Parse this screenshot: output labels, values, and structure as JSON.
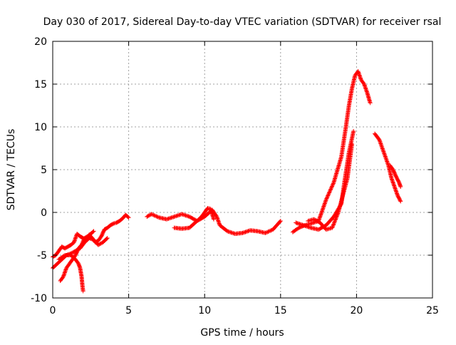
{
  "chart_data": {
    "type": "scatter",
    "title": "Day 030 of 2017, Sidereal Day-to-day VTEC variation (SDTVAR) for receiver rsal",
    "xlabel": "GPS time / hours",
    "ylabel": "SDTVAR / TECUs",
    "xlim": [
      0,
      25
    ],
    "ylim": [
      -10,
      20
    ],
    "x_ticks": [
      0,
      5,
      10,
      15,
      20,
      25
    ],
    "x_tick_labels": [
      "0",
      "5",
      "10",
      "15",
      "20",
      "25"
    ],
    "y_ticks": [
      -10,
      -5,
      0,
      5,
      10,
      15,
      20
    ],
    "y_tick_labels": [
      "-10",
      "-5",
      "0",
      "5",
      "10",
      "15",
      "20"
    ],
    "grid": true,
    "marker": "+",
    "series_color": "#ff0000",
    "series": [
      {
        "name": "segment-1",
        "x": [
          0.0,
          0.2,
          0.4,
          0.6,
          0.8,
          1.0,
          1.2,
          1.4,
          1.6,
          1.8,
          2.0,
          2.2,
          2.4,
          2.6,
          2.8,
          3.0,
          3.2,
          3.4,
          3.6,
          3.8,
          4.0,
          4.2,
          4.4,
          4.6,
          4.8,
          5.0
        ],
        "y": [
          -5.2,
          -5.0,
          -4.5,
          -4.0,
          -4.2,
          -4.0,
          -3.8,
          -3.5,
          -2.5,
          -2.8,
          -3.0,
          -3.2,
          -2.6,
          -3.0,
          -3.5,
          -3.3,
          -2.8,
          -2.0,
          -1.8,
          -1.5,
          -1.3,
          -1.2,
          -1.0,
          -0.7,
          -0.3,
          -0.6
        ]
      },
      {
        "name": "segment-2",
        "x": [
          0.0,
          0.3,
          0.6,
          0.9,
          1.2,
          1.5,
          1.8,
          2.1,
          2.4,
          2.7,
          3.0,
          3.3,
          3.6
        ],
        "y": [
          -6.5,
          -6.0,
          -5.5,
          -5.0,
          -4.8,
          -4.5,
          -4.2,
          -3.5,
          -3.0,
          -3.2,
          -3.8,
          -3.5,
          -3.0
        ]
      },
      {
        "name": "segment-3",
        "x": [
          0.5,
          0.7,
          0.9,
          1.1,
          1.3,
          1.5,
          1.7,
          1.9,
          2.1,
          2.3,
          2.5,
          2.7
        ],
        "y": [
          -8.0,
          -7.5,
          -6.5,
          -6.0,
          -5.5,
          -5.0,
          -4.2,
          -3.8,
          -3.0,
          -2.8,
          -2.5,
          -2.2
        ]
      },
      {
        "name": "segment-4",
        "x": [
          0.4,
          0.8,
          1.2,
          1.5,
          1.7,
          1.8,
          1.9,
          1.95,
          2.0
        ],
        "y": [
          -5.5,
          -5.0,
          -5.0,
          -5.5,
          -6.0,
          -6.5,
          -7.5,
          -8.5,
          -9.2
        ]
      },
      {
        "name": "segment-5",
        "x": [
          6.2,
          6.5,
          7.0,
          7.5,
          8.0,
          8.5,
          9.0,
          9.5,
          10.0,
          10.5,
          10.8,
          11.0,
          11.5,
          12.0,
          12.5,
          13.0,
          13.5,
          14.0,
          14.5,
          15.0
        ],
        "y": [
          -0.5,
          -0.2,
          -0.6,
          -0.8,
          -0.5,
          -0.2,
          -0.5,
          -1.0,
          -0.5,
          0.3,
          -0.5,
          -1.5,
          -2.2,
          -2.5,
          -2.4,
          -2.1,
          -2.2,
          -2.4,
          -2.0,
          -1.0
        ]
      },
      {
        "name": "segment-6",
        "x": [
          8.0,
          8.5,
          9.0,
          9.5,
          9.8,
          10.0,
          10.2,
          10.4,
          10.6
        ],
        "y": [
          -1.8,
          -1.9,
          -1.8,
          -1.0,
          -0.5,
          0.0,
          0.5,
          0.4,
          -0.8
        ]
      },
      {
        "name": "segment-7",
        "x": [
          15.8,
          16.2,
          16.6,
          17.0,
          17.5,
          18.0,
          18.5,
          19.0,
          19.3,
          19.5,
          19.7,
          19.9,
          20.1,
          20.3,
          20.5,
          20.7,
          20.9
        ],
        "y": [
          -2.3,
          -1.8,
          -1.5,
          -1.3,
          -1.0,
          1.5,
          3.5,
          6.5,
          10.0,
          12.5,
          14.5,
          16.0,
          16.5,
          15.5,
          15.0,
          14.0,
          12.8
        ]
      },
      {
        "name": "segment-8",
        "x": [
          16.0,
          16.5,
          17.0,
          17.5,
          18.0,
          18.5,
          19.0,
          19.2,
          19.5,
          19.8
        ],
        "y": [
          -1.2,
          -1.5,
          -1.8,
          -2.0,
          -1.5,
          -0.5,
          1.0,
          3.5,
          7.0,
          9.5
        ]
      },
      {
        "name": "segment-9",
        "x": [
          16.8,
          17.2,
          17.6,
          18.0,
          18.4,
          18.8,
          19.1,
          19.4,
          19.7
        ],
        "y": [
          -1.0,
          -0.8,
          -1.2,
          -2.0,
          -1.8,
          0.0,
          2.0,
          4.0,
          8.0
        ]
      },
      {
        "name": "segment-10",
        "x": [
          21.2,
          21.5,
          21.8,
          22.1,
          22.3,
          22.5,
          22.7,
          22.9
        ],
        "y": [
          9.2,
          8.5,
          7.0,
          5.5,
          4.0,
          3.0,
          2.0,
          1.3
        ]
      },
      {
        "name": "segment-11",
        "x": [
          22.2,
          22.4,
          22.6,
          22.8,
          22.9
        ],
        "y": [
          5.5,
          5.0,
          4.2,
          3.5,
          3.0
        ]
      }
    ]
  }
}
